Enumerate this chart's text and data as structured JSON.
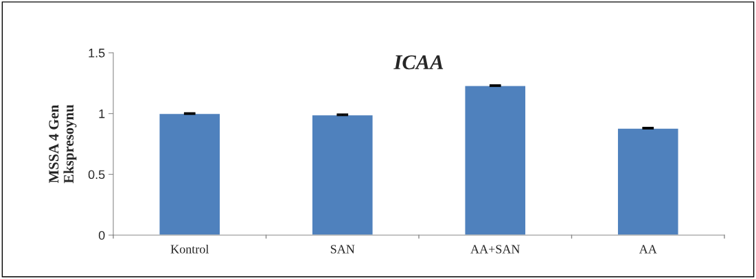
{
  "chart_data": {
    "type": "bar",
    "title": "ICAA",
    "ylabel": "MSSA 4 Gen\nEkspresoynu",
    "categories": [
      "Kontrol",
      "SAN",
      "AA+SAN",
      "AA"
    ],
    "values": [
      1.0,
      0.99,
      1.23,
      0.88
    ],
    "errors": [
      0.005,
      0.005,
      0.005,
      0.005
    ],
    "color": "#4f81bd",
    "ylim": [
      0,
      1.5
    ],
    "yticks": [
      0,
      0.5,
      1,
      1.5
    ],
    "grid": false,
    "legend": false
  }
}
